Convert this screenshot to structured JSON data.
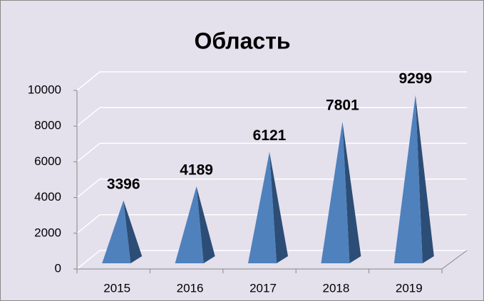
{
  "chart_data": {
    "type": "bar",
    "title": "Область",
    "categories": [
      "2015",
      "2016",
      "2017",
      "2018",
      "2019"
    ],
    "values": [
      3396,
      4189,
      6121,
      7801,
      9299
    ],
    "color": "#4f81bd",
    "ylim": [
      0,
      10000
    ],
    "yticks": [
      0,
      2000,
      4000,
      6000,
      8000,
      10000
    ],
    "grid": true
  }
}
